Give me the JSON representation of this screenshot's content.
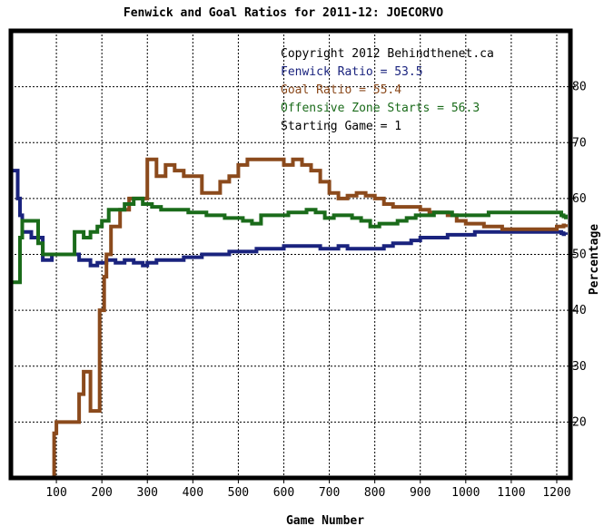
{
  "chart_data": {
    "type": "line",
    "title": "Fenwick and Goal Ratios for 2011-12: JOECORVO",
    "xlabel": "Game Number",
    "ylabel": "Percentage",
    "xlim": [
      0,
      1230
    ],
    "ylim": [
      10,
      90
    ],
    "x_ticks": [
      100,
      200,
      300,
      400,
      500,
      600,
      700,
      800,
      900,
      1000,
      1100,
      1200
    ],
    "y_ticks": [
      20,
      30,
      40,
      50,
      60,
      70,
      80
    ],
    "y_axis_side": "right",
    "grid": "dotted",
    "colors": {
      "background": "#ffffff",
      "frame": "#000000",
      "grid": "#000000",
      "fenwick": "#1a237e",
      "goal": "#8b4a1c",
      "ozone": "#1a6b1a"
    },
    "legend": {
      "placement": "top-right",
      "lines": [
        {
          "text": "Copyright 2012 Behindthenet.ca",
          "color": "#000000"
        },
        {
          "text": "Fenwick Ratio = 53.5",
          "color": "#1a237e"
        },
        {
          "text": "Goal Ratio = 55.4",
          "color": "#8b4a1c"
        },
        {
          "text": "Offensive Zone Starts = 56.3",
          "color": "#1a6b1a"
        },
        {
          "text": "Starting Game = 1",
          "color": "#000000"
        }
      ]
    },
    "series": [
      {
        "key": "fenwick",
        "x": [
          1,
          15,
          20,
          25,
          45,
          70,
          90,
          110,
          150,
          175,
          190,
          210,
          230,
          250,
          270,
          290,
          300,
          320,
          340,
          360,
          380,
          400,
          420,
          440,
          460,
          480,
          500,
          520,
          540,
          560,
          580,
          600,
          620,
          640,
          660,
          680,
          700,
          720,
          740,
          760,
          780,
          800,
          820,
          840,
          860,
          880,
          900,
          920,
          940,
          960,
          980,
          1000,
          1020,
          1040,
          1060,
          1080,
          1100,
          1120,
          1140,
          1160,
          1180,
          1200,
          1210,
          1215,
          1220
        ],
        "y": [
          65,
          60,
          57,
          54,
          53,
          49,
          50,
          50,
          49,
          48,
          48.5,
          49,
          48.5,
          49,
          48.5,
          48,
          48.5,
          49,
          49,
          49,
          49.5,
          49.5,
          50,
          50,
          50,
          50.5,
          50.5,
          50.5,
          51,
          51,
          51,
          51.5,
          51.5,
          51.5,
          51.5,
          51,
          51,
          51.5,
          51,
          51,
          51,
          51,
          51.5,
          52,
          52,
          52.5,
          53,
          53,
          53,
          53.5,
          53.5,
          53.5,
          54,
          54,
          54,
          54,
          54,
          54,
          54,
          54,
          54,
          54,
          53.8,
          53.6,
          53.5
        ]
      },
      {
        "key": "goal",
        "x": [
          90,
          95,
          100,
          140,
          150,
          160,
          175,
          190,
          195,
          205,
          210,
          220,
          240,
          260,
          280,
          300,
          320,
          340,
          360,
          380,
          400,
          420,
          440,
          460,
          480,
          500,
          520,
          540,
          560,
          580,
          600,
          620,
          640,
          660,
          680,
          700,
          720,
          740,
          760,
          780,
          800,
          820,
          840,
          860,
          880,
          900,
          920,
          940,
          960,
          980,
          1000,
          1020,
          1040,
          1060,
          1080,
          1100,
          1120,
          1140,
          1160,
          1180,
          1200,
          1215,
          1220
        ],
        "y": [
          10,
          18,
          20,
          20,
          25,
          29,
          22,
          22,
          40,
          46,
          50,
          55,
          58,
          60,
          60,
          67,
          64,
          66,
          65,
          64,
          64,
          61,
          61,
          63,
          64,
          66,
          67,
          67,
          67,
          67,
          66,
          67,
          66,
          65,
          63,
          61,
          60,
          60.5,
          61,
          60.5,
          60,
          59,
          58.5,
          58.5,
          58.5,
          58,
          57.5,
          57.5,
          57,
          56,
          55.5,
          55.5,
          55,
          55,
          54.5,
          54.5,
          54.5,
          54.5,
          54.5,
          54.5,
          55,
          55.2,
          55.4
        ]
      },
      {
        "key": "ozone",
        "x": [
          1,
          10,
          20,
          25,
          35,
          45,
          60,
          70,
          90,
          110,
          140,
          160,
          175,
          190,
          200,
          215,
          230,
          250,
          270,
          290,
          310,
          330,
          350,
          370,
          390,
          410,
          430,
          450,
          470,
          490,
          510,
          530,
          550,
          570,
          590,
          610,
          630,
          650,
          670,
          690,
          710,
          730,
          750,
          770,
          790,
          810,
          830,
          850,
          870,
          890,
          910,
          930,
          950,
          970,
          990,
          1010,
          1030,
          1050,
          1070,
          1090,
          1110,
          1130,
          1150,
          1170,
          1190,
          1200,
          1210,
          1215,
          1220
        ],
        "y": [
          45,
          45,
          53,
          56,
          56,
          56,
          52,
          50,
          50,
          50,
          54,
          53,
          54,
          55,
          56,
          58,
          58,
          59,
          60,
          59,
          58.5,
          58,
          58,
          58,
          57.5,
          57.5,
          57,
          57,
          56.5,
          56.5,
          56,
          55.5,
          57,
          57,
          57,
          57.5,
          57.5,
          58,
          57.5,
          56.5,
          57,
          57,
          56.5,
          56,
          55,
          55.5,
          55.5,
          56,
          56.5,
          57,
          57,
          57.5,
          57.5,
          57,
          57,
          57,
          57,
          57.5,
          57.5,
          57.5,
          57.5,
          57.5,
          57.5,
          57.5,
          57.5,
          57.5,
          57,
          56.8,
          56.3
        ]
      }
    ]
  }
}
